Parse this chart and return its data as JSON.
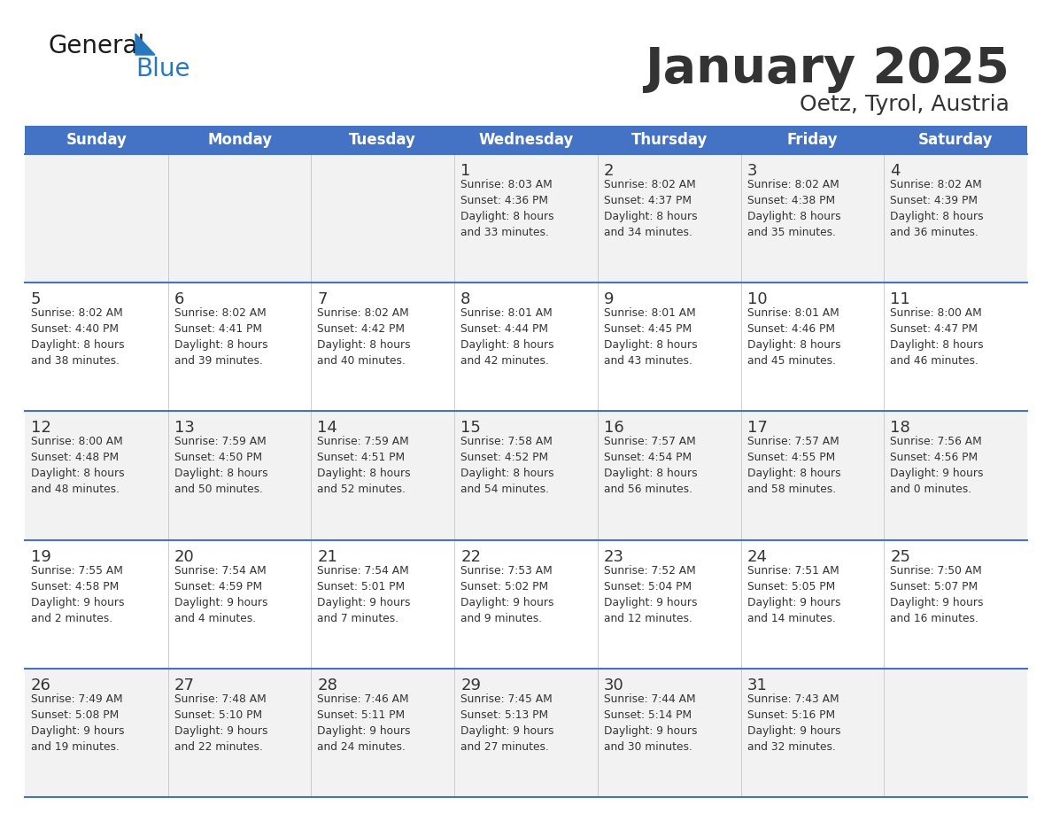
{
  "title": "January 2025",
  "subtitle": "Oetz, Tyrol, Austria",
  "header_color": "#4472C4",
  "header_text_color": "#FFFFFF",
  "day_names": [
    "Sunday",
    "Monday",
    "Tuesday",
    "Wednesday",
    "Thursday",
    "Friday",
    "Saturday"
  ],
  "weeks": [
    [
      {
        "day": null,
        "info": null
      },
      {
        "day": null,
        "info": null
      },
      {
        "day": null,
        "info": null
      },
      {
        "day": 1,
        "info": "Sunrise: 8:03 AM\nSunset: 4:36 PM\nDaylight: 8 hours\nand 33 minutes."
      },
      {
        "day": 2,
        "info": "Sunrise: 8:02 AM\nSunset: 4:37 PM\nDaylight: 8 hours\nand 34 minutes."
      },
      {
        "day": 3,
        "info": "Sunrise: 8:02 AM\nSunset: 4:38 PM\nDaylight: 8 hours\nand 35 minutes."
      },
      {
        "day": 4,
        "info": "Sunrise: 8:02 AM\nSunset: 4:39 PM\nDaylight: 8 hours\nand 36 minutes."
      }
    ],
    [
      {
        "day": 5,
        "info": "Sunrise: 8:02 AM\nSunset: 4:40 PM\nDaylight: 8 hours\nand 38 minutes."
      },
      {
        "day": 6,
        "info": "Sunrise: 8:02 AM\nSunset: 4:41 PM\nDaylight: 8 hours\nand 39 minutes."
      },
      {
        "day": 7,
        "info": "Sunrise: 8:02 AM\nSunset: 4:42 PM\nDaylight: 8 hours\nand 40 minutes."
      },
      {
        "day": 8,
        "info": "Sunrise: 8:01 AM\nSunset: 4:44 PM\nDaylight: 8 hours\nand 42 minutes."
      },
      {
        "day": 9,
        "info": "Sunrise: 8:01 AM\nSunset: 4:45 PM\nDaylight: 8 hours\nand 43 minutes."
      },
      {
        "day": 10,
        "info": "Sunrise: 8:01 AM\nSunset: 4:46 PM\nDaylight: 8 hours\nand 45 minutes."
      },
      {
        "day": 11,
        "info": "Sunrise: 8:00 AM\nSunset: 4:47 PM\nDaylight: 8 hours\nand 46 minutes."
      }
    ],
    [
      {
        "day": 12,
        "info": "Sunrise: 8:00 AM\nSunset: 4:48 PM\nDaylight: 8 hours\nand 48 minutes."
      },
      {
        "day": 13,
        "info": "Sunrise: 7:59 AM\nSunset: 4:50 PM\nDaylight: 8 hours\nand 50 minutes."
      },
      {
        "day": 14,
        "info": "Sunrise: 7:59 AM\nSunset: 4:51 PM\nDaylight: 8 hours\nand 52 minutes."
      },
      {
        "day": 15,
        "info": "Sunrise: 7:58 AM\nSunset: 4:52 PM\nDaylight: 8 hours\nand 54 minutes."
      },
      {
        "day": 16,
        "info": "Sunrise: 7:57 AM\nSunset: 4:54 PM\nDaylight: 8 hours\nand 56 minutes."
      },
      {
        "day": 17,
        "info": "Sunrise: 7:57 AM\nSunset: 4:55 PM\nDaylight: 8 hours\nand 58 minutes."
      },
      {
        "day": 18,
        "info": "Sunrise: 7:56 AM\nSunset: 4:56 PM\nDaylight: 9 hours\nand 0 minutes."
      }
    ],
    [
      {
        "day": 19,
        "info": "Sunrise: 7:55 AM\nSunset: 4:58 PM\nDaylight: 9 hours\nand 2 minutes."
      },
      {
        "day": 20,
        "info": "Sunrise: 7:54 AM\nSunset: 4:59 PM\nDaylight: 9 hours\nand 4 minutes."
      },
      {
        "day": 21,
        "info": "Sunrise: 7:54 AM\nSunset: 5:01 PM\nDaylight: 9 hours\nand 7 minutes."
      },
      {
        "day": 22,
        "info": "Sunrise: 7:53 AM\nSunset: 5:02 PM\nDaylight: 9 hours\nand 9 minutes."
      },
      {
        "day": 23,
        "info": "Sunrise: 7:52 AM\nSunset: 5:04 PM\nDaylight: 9 hours\nand 12 minutes."
      },
      {
        "day": 24,
        "info": "Sunrise: 7:51 AM\nSunset: 5:05 PM\nDaylight: 9 hours\nand 14 minutes."
      },
      {
        "day": 25,
        "info": "Sunrise: 7:50 AM\nSunset: 5:07 PM\nDaylight: 9 hours\nand 16 minutes."
      }
    ],
    [
      {
        "day": 26,
        "info": "Sunrise: 7:49 AM\nSunset: 5:08 PM\nDaylight: 9 hours\nand 19 minutes."
      },
      {
        "day": 27,
        "info": "Sunrise: 7:48 AM\nSunset: 5:10 PM\nDaylight: 9 hours\nand 22 minutes."
      },
      {
        "day": 28,
        "info": "Sunrise: 7:46 AM\nSunset: 5:11 PM\nDaylight: 9 hours\nand 24 minutes."
      },
      {
        "day": 29,
        "info": "Sunrise: 7:45 AM\nSunset: 5:13 PM\nDaylight: 9 hours\nand 27 minutes."
      },
      {
        "day": 30,
        "info": "Sunrise: 7:44 AM\nSunset: 5:14 PM\nDaylight: 9 hours\nand 30 minutes."
      },
      {
        "day": 31,
        "info": "Sunrise: 7:43 AM\nSunset: 5:16 PM\nDaylight: 9 hours\nand 32 minutes."
      },
      {
        "day": null,
        "info": null
      }
    ]
  ],
  "bg_color": "#FFFFFF",
  "cell_bg_odd": "#F2F2F2",
  "cell_bg_even": "#FFFFFF",
  "grid_line_color": "#4472C4",
  "day_num_color": "#333333",
  "info_text_color": "#333333",
  "logo_general_color": "#1a1a1a",
  "logo_blue_color": "#2878C0",
  "fig_width": 11.88,
  "fig_height": 9.18,
  "dpi": 100
}
